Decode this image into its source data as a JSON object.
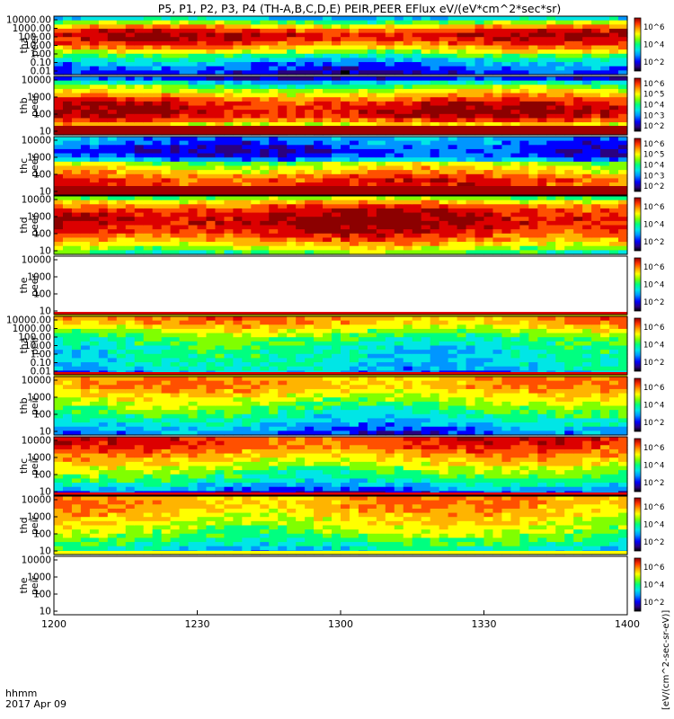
{
  "chart_data": {
    "type": "heatmap",
    "title": "P5, P1, P2, P3, P4 (TH-A,B,C,D,E) PEIR,PEER EFlux eV/(eV*cm^2*sec*sr)",
    "colorbar_unit": "[eV/(cm^2-sec-sr-eV)]",
    "colorbar_ticks": [
      "10^2",
      "10^4",
      "10^6"
    ],
    "colorbar_ticks_narrow": [
      "10^2",
      "10^3",
      "10^4",
      "10^5",
      "10^6"
    ],
    "x_tick_labels": [
      "1200",
      "1230",
      "1300",
      "1330",
      "1400"
    ],
    "x_range_minutes": [
      0,
      120
    ],
    "x_ticks_minutes": [
      0,
      30,
      60,
      90,
      120
    ],
    "x_prefix_label": "hhmm",
    "date_label": "2017 Apr 09",
    "colormap": [
      "#000000",
      "#2a0080",
      "#0000ff",
      "#0096ff",
      "#00e6e6",
      "#00ff80",
      "#80ff00",
      "#ffff00",
      "#ffb400",
      "#ff5000",
      "#dc0000",
      "#8c0000"
    ],
    "panels": [
      {
        "probe": "tha",
        "species": "peer",
        "ylabels": [
          "10000.00",
          "1000.00",
          "100.00",
          "10.00",
          "1.00",
          "0.10",
          "0.01"
        ],
        "profile": [
          0.35,
          0.55,
          0.75,
          0.9,
          0.88,
          0.8,
          0.7,
          0.55,
          0.4,
          0.3,
          0.25,
          0.2
        ],
        "mask": [],
        "bands": []
      },
      {
        "probe": "thb",
        "species": "peer",
        "ylabels": [
          "10000",
          "1000",
          "100",
          "10"
        ],
        "profile": [
          0.2,
          0.4,
          0.55,
          0.65,
          0.75,
          0.85,
          0.9,
          0.9,
          0.85,
          0.7,
          0.5,
          0.35
        ],
        "mask": [],
        "bands": [
          "bottom-dark"
        ]
      },
      {
        "probe": "thc",
        "species": "peer",
        "ylabels": [
          "10000",
          "1000",
          "100",
          "10"
        ],
        "profile": [
          0.3,
          0.25,
          0.2,
          0.2,
          0.25,
          0.55,
          0.65,
          0.7,
          0.8,
          0.85,
          0.75,
          0.6
        ],
        "mask": [],
        "bands": [
          "bottom-dark"
        ]
      },
      {
        "probe": "thd",
        "species": "peer",
        "ylabels": [
          "10000",
          "1000",
          "100",
          "10"
        ],
        "profile": [
          0.55,
          0.7,
          0.82,
          0.9,
          0.92,
          0.92,
          0.9,
          0.85,
          0.78,
          0.7,
          0.6,
          0.5
        ],
        "mask": [],
        "bands": []
      },
      {
        "probe": "the",
        "species": "peer",
        "ylabels": [
          "10000",
          "1000",
          "100",
          "10"
        ],
        "profile": [],
        "mask": [],
        "bands": [
          "bottom-stripe"
        ]
      },
      {
        "probe": "tha",
        "species": "peir",
        "ylabels": [
          "10000.00",
          "1000.00",
          "100.00",
          "10.00",
          "1.00",
          "0.10",
          "0.01"
        ],
        "profile": [
          0.75,
          0.7,
          0.62,
          0.55,
          0.48,
          0.45,
          0.42,
          0.4,
          0.4,
          0.38,
          0.36,
          0.3
        ],
        "mask": [],
        "bands": [
          "bottom-stripe"
        ]
      },
      {
        "probe": "thb",
        "species": "peir",
        "ylabels": [
          "10000",
          "1000",
          "100",
          "10"
        ],
        "profile": [
          0.72,
          0.72,
          0.7,
          0.65,
          0.6,
          0.55,
          0.5,
          0.45,
          0.4,
          0.35,
          0.3,
          0.25
        ],
        "mask": [],
        "bands": []
      },
      {
        "probe": "thc",
        "species": "peir",
        "ylabels": [
          "10000",
          "1000",
          "100",
          "10"
        ],
        "profile": [
          0.85,
          0.82,
          0.78,
          0.72,
          0.68,
          0.62,
          0.55,
          0.5,
          0.45,
          0.38,
          0.3,
          0.2
        ],
        "mask": [],
        "bands": [
          "bottom-stripe"
        ]
      },
      {
        "probe": "thd",
        "species": "peir",
        "ylabels": [
          "10000",
          "1000",
          "100",
          "10"
        ],
        "profile": [
          0.72,
          0.72,
          0.7,
          0.68,
          0.65,
          0.62,
          0.58,
          0.55,
          0.5,
          0.45,
          0.4,
          0.35
        ],
        "mask": [],
        "bands": [
          "bottom-stripe-yellow"
        ]
      },
      {
        "probe": "the",
        "species": "peir",
        "ylabels": [
          "10000",
          "1000",
          "100",
          "10"
        ],
        "profile": [],
        "mask": [],
        "bands": []
      }
    ]
  }
}
